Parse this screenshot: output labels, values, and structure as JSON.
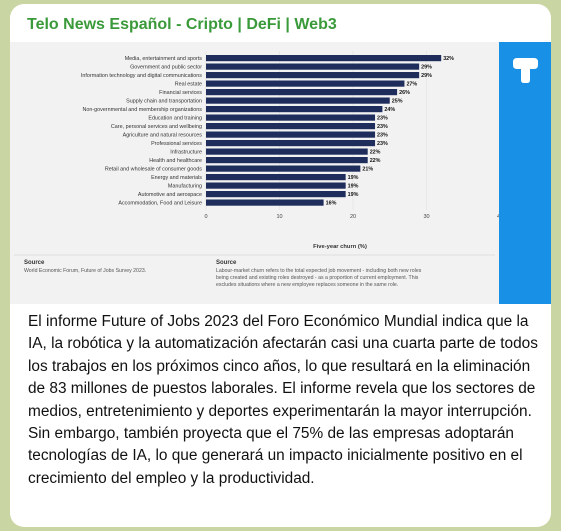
{
  "channel": {
    "name": "Telo News Español - Cripto | DeFi | Web3"
  },
  "chart_data": {
    "type": "bar",
    "orientation": "horizontal",
    "categories": [
      "Media, entertainment and sports",
      "Government and public sector",
      "Information technology and digital communications",
      "Real estate",
      "Financial services",
      "Supply chain and transportation",
      "Non-governmental and membership organizations",
      "Education and training",
      "Care, personal services and wellbeing",
      "Agriculture and natural resources",
      "Professional services",
      "Infrastructure",
      "Health and healthcare",
      "Retail and wholesale of consumer goods",
      "Energy and materials",
      "Manufacturing",
      "Automotive and aerospace",
      "Accommodation, Food and Leisure"
    ],
    "values": [
      32,
      29,
      29,
      27,
      26,
      25,
      24,
      23,
      23,
      23,
      23,
      22,
      22,
      21,
      19,
      19,
      19,
      16
    ],
    "value_labels": [
      "32%",
      "29%",
      "29%",
      "27%",
      "26%",
      "25%",
      "24%",
      "23%",
      "23%",
      "23%",
      "23%",
      "22%",
      "22%",
      "21%",
      "19%",
      "19%",
      "19%",
      "16%"
    ],
    "xticks": [
      "0",
      "10",
      "20",
      "30",
      "40"
    ],
    "xlim": [
      0,
      40
    ],
    "xlabel": "Five-year churn (%)",
    "bar_color": "#1f2d5c",
    "source_title": "Source",
    "source_text": "World Economic Forum, Future of Jobs Survey 2023.",
    "note_title": "Source",
    "note_lines": [
      "Labour-market churn refers to the total expected job movement - including both new roles",
      "being created and existing roles destroyed - as a proportion of current employment. This",
      "excludes situations where a new employee replaces someone in the same role."
    ]
  },
  "media": {
    "side_icon": "telegraph-t-icon",
    "side_color": "#1890e6"
  },
  "message": {
    "text": "El informe Future of Jobs 2023 del Foro Económico Mundial indica que la IA, la robótica y la automatización afectarán casi una cuarta parte de todos los trabajos en los próximos cinco años, lo que resultará en la eliminación de 83 millones de puestos laborales. El informe revela que los sectores de medios, entretenimiento y deportes experimentarán la mayor interrupción. Sin embargo, también proyecta que el 75% de las empresas adoptarán tecnologías de IA, lo que generará un impacto inicialmente positivo en el crecimiento del empleo y la productividad."
  }
}
